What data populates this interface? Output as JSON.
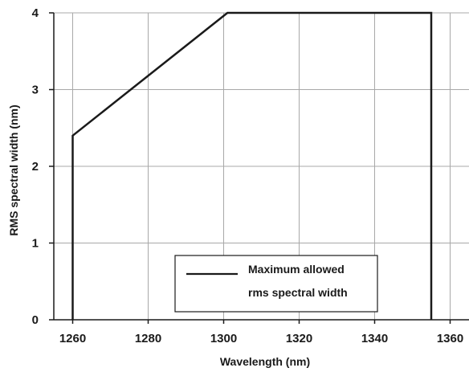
{
  "chart_data": {
    "type": "line",
    "title": "",
    "xlabel": "Wavelength (nm)",
    "ylabel": "RMS spectral width (nm)",
    "xlim": [
      1255,
      1365
    ],
    "ylim": [
      0,
      4
    ],
    "x_ticks": [
      1260,
      1280,
      1300,
      1320,
      1340,
      1360
    ],
    "y_ticks": [
      0,
      1,
      2,
      3,
      4
    ],
    "grid": true,
    "legend_position": "bottom-center",
    "legend_lines": [
      "Maximum allowed",
      "rms spectral width"
    ],
    "series": [
      {
        "name": "Maximum allowed rms spectral width",
        "color": "#1a1a1a",
        "x": [
          1260,
          1260,
          1301,
          1355,
          1355
        ],
        "y": [
          0,
          2.4,
          4.0,
          4.0,
          0
        ]
      }
    ]
  }
}
